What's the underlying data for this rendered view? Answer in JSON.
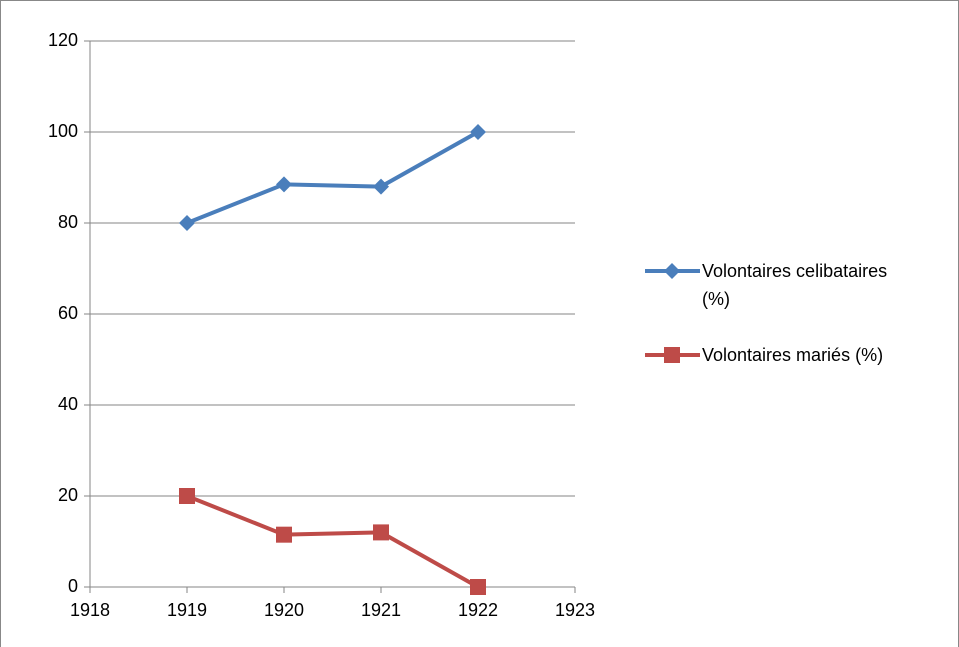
{
  "chart_data": {
    "type": "line",
    "x": [
      1919,
      1920,
      1921,
      1922
    ],
    "series": [
      {
        "name": "Volontaires celibataires (%)",
        "color": "#4a7ebb",
        "marker": "diamond",
        "values": [
          80,
          88.5,
          88,
          100
        ]
      },
      {
        "name": "Volontaires mariés (%)",
        "color": "#be4b48",
        "marker": "square",
        "values": [
          20,
          11.5,
          12,
          0
        ]
      }
    ],
    "xlim": [
      1918,
      1923
    ],
    "xticks": [
      1918,
      1919,
      1920,
      1921,
      1922,
      1923
    ],
    "ylim": [
      0,
      120
    ],
    "yticks": [
      0,
      20,
      40,
      60,
      80,
      100,
      120
    ],
    "grid": true,
    "legend": "right"
  }
}
